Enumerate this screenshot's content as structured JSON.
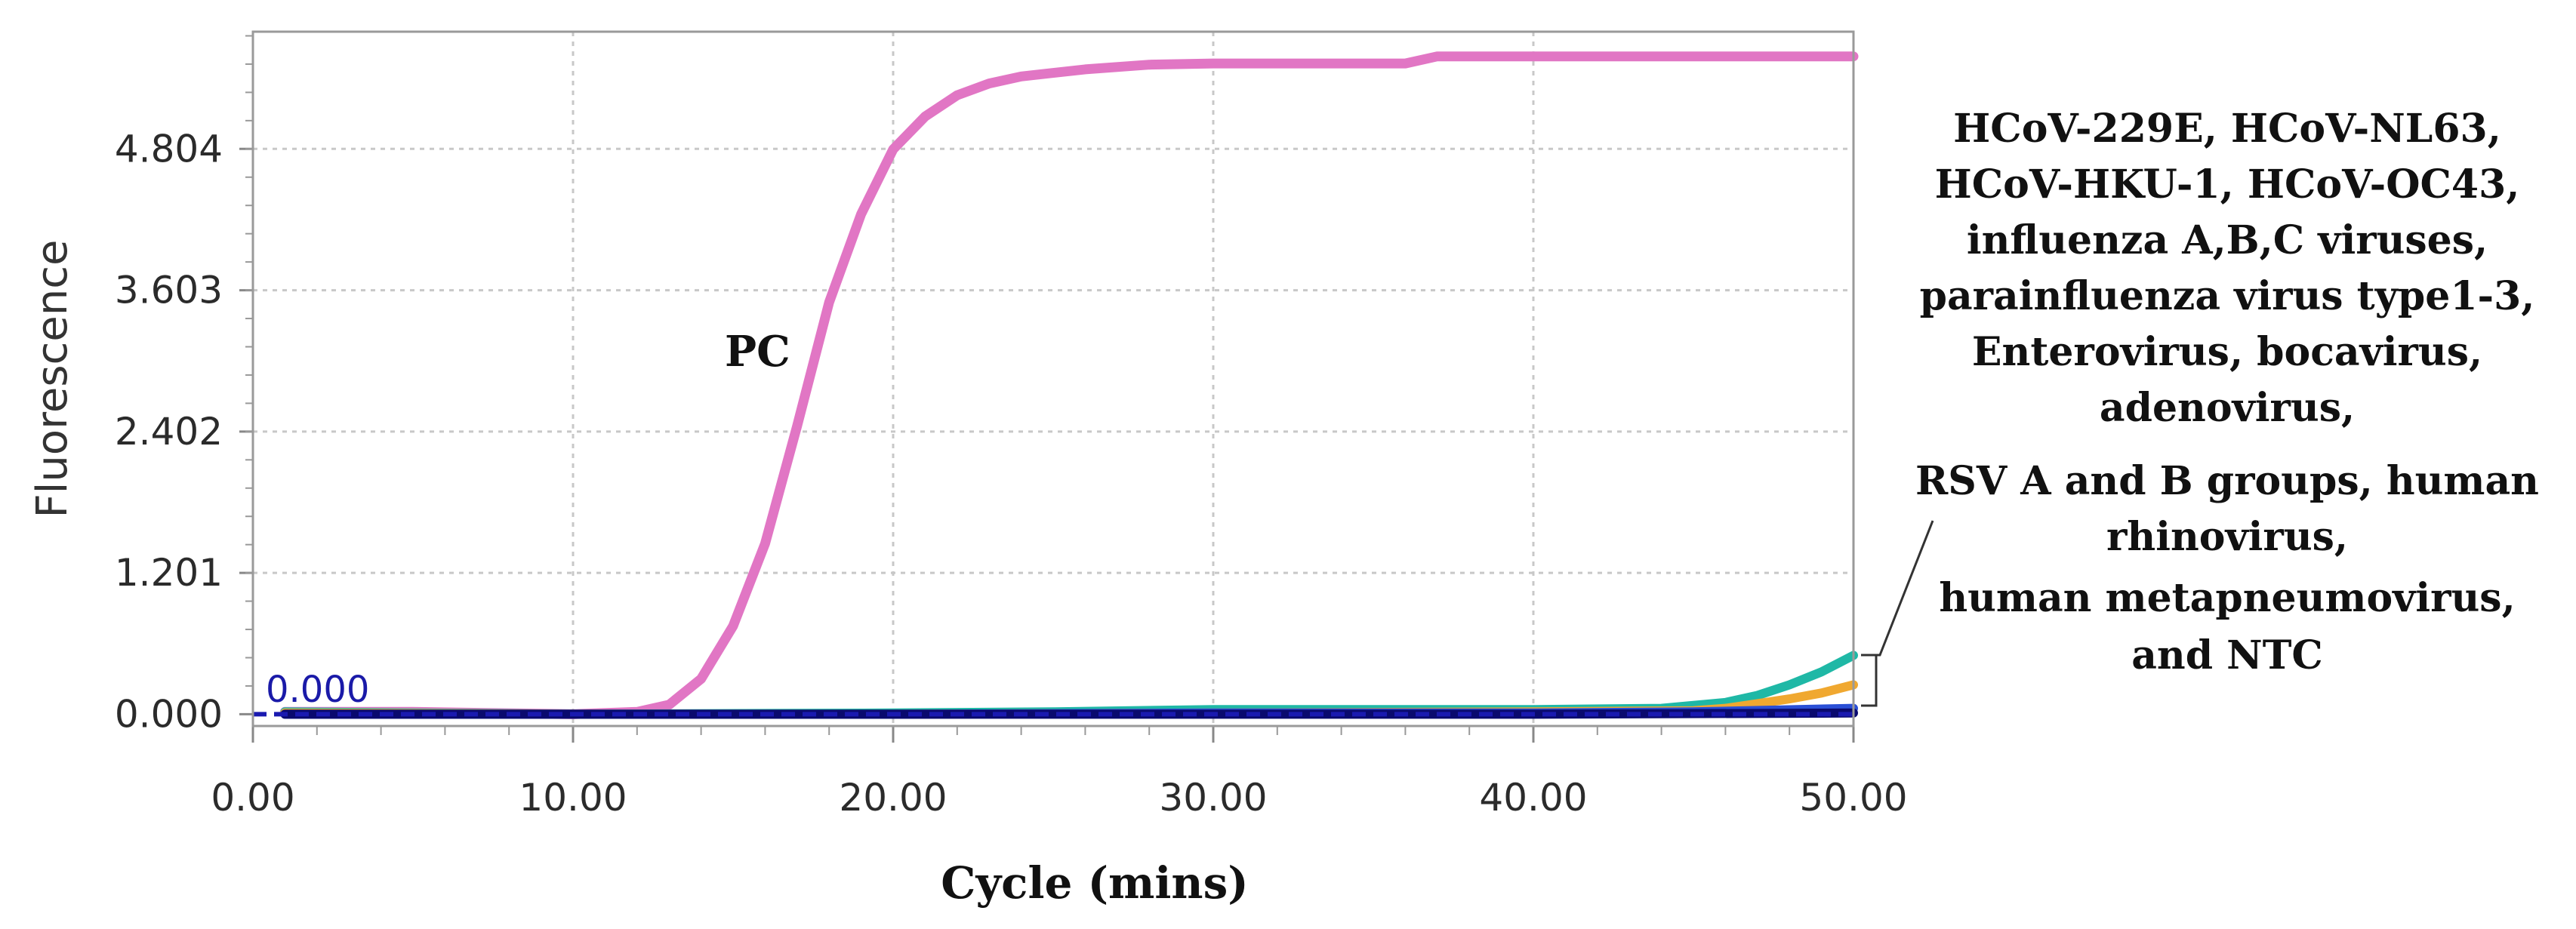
{
  "chart_data": {
    "type": "line",
    "title": "",
    "xlabel": "Cycle (mins)",
    "ylabel": "Fluorescence",
    "xlim": [
      0,
      50
    ],
    "ylim": [
      -0.1,
      5.8
    ],
    "x_ticks": [
      "0.00",
      "10.00",
      "20.00",
      "30.00",
      "40.00",
      "50.00"
    ],
    "y_ticks": [
      "0.000",
      "1.201",
      "2.402",
      "3.603",
      "4.804"
    ],
    "grid": true,
    "threshold_label": "0.000",
    "series_label": "PC",
    "annotation_lines": [
      "HCoV-229E, HCoV-NL63,",
      "HCoV-HKU-1, HCoV-OC43,",
      "influenza A,B,C viruses,",
      "parainfluenza virus type1-3,",
      "Enterovirus, bocavirus,",
      "adenovirus,",
      "RSV A and B groups, human",
      "rhinovirus,",
      "human metapneumovirus,",
      "and NTC"
    ],
    "series": [
      {
        "color": "#e176c4",
        "x": [
          1,
          5,
          10,
          12,
          13,
          14,
          15,
          16,
          17,
          18,
          19,
          20,
          21,
          22,
          23,
          24,
          26,
          28,
          30,
          33,
          36,
          37,
          40,
          45,
          50
        ],
        "y": [
          0.02,
          0.02,
          0.0,
          0.02,
          0.08,
          0.3,
          0.75,
          1.45,
          2.45,
          3.5,
          4.25,
          4.8,
          5.08,
          5.26,
          5.36,
          5.42,
          5.48,
          5.52,
          5.53,
          5.53,
          5.53,
          5.59,
          5.59,
          5.59,
          5.59
        ]
      },
      {
        "color": "#1fb8a6",
        "x": [
          1,
          10,
          20,
          25,
          30,
          40,
          44,
          46,
          47,
          48,
          49,
          50
        ],
        "y": [
          0.02,
          0.0,
          0.01,
          0.02,
          0.04,
          0.04,
          0.05,
          0.1,
          0.16,
          0.25,
          0.36,
          0.5
        ]
      },
      {
        "color": "#f0a830",
        "x": [
          1,
          10,
          20,
          30,
          40,
          45,
          46,
          47,
          48,
          49,
          50
        ],
        "y": [
          0.01,
          0.0,
          0.0,
          0.01,
          0.02,
          0.03,
          0.05,
          0.09,
          0.13,
          0.18,
          0.25
        ]
      },
      {
        "color": "#2a4fd6",
        "x": [
          1,
          10,
          20,
          30,
          40,
          45,
          50
        ],
        "y": [
          0.0,
          0.0,
          0.0,
          0.01,
          0.01,
          0.02,
          0.05
        ]
      },
      {
        "color": "#0a0a6e",
        "x": [
          1,
          10,
          20,
          30,
          40,
          50
        ],
        "y": [
          0.0,
          0.0,
          0.0,
          0.0,
          0.0,
          0.01
        ]
      }
    ]
  }
}
